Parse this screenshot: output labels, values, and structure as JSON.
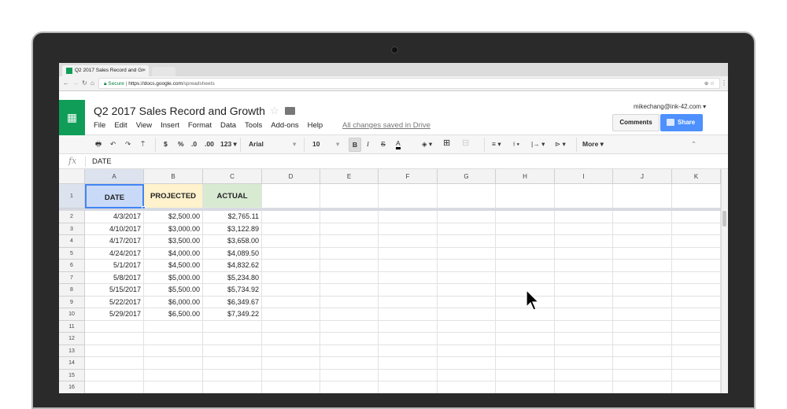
{
  "browser": {
    "tab_title": "Q2 2017 Sales Record and Gr",
    "secure_label": "Secure",
    "url_host": "https://docs.google.com",
    "url_path": "/spreadsheets"
  },
  "doc": {
    "title": "Q2 2017 Sales Record and Growth",
    "menu": [
      "File",
      "Edit",
      "View",
      "Insert",
      "Format",
      "Data",
      "Tools",
      "Add-ons",
      "Help"
    ],
    "save_status": "All changes saved in Drive",
    "user": "mikechang@ink-42.com",
    "comments_label": "Comments",
    "share_label": "Share"
  },
  "toolbar": {
    "currency": "$",
    "percent": "%",
    "dec_less": ".0",
    "dec_more": ".00",
    "format_more": "123",
    "font": "Arial",
    "size": "10",
    "bold": "B",
    "italic": "I",
    "strike": "S",
    "textcolor": "A",
    "more": "More"
  },
  "formula": {
    "label": "fx",
    "value": "DATE"
  },
  "columns": [
    "A",
    "B",
    "C",
    "D",
    "E",
    "F",
    "G",
    "H",
    "I",
    "J",
    "K"
  ],
  "header_row": [
    {
      "text": "DATE",
      "bg": "#c9daf8"
    },
    {
      "text": "PROJECTED",
      "bg": "#fff2cc"
    },
    {
      "text": "ACTUAL",
      "bg": "#d9ead3"
    }
  ],
  "rows": [
    [
      "4/3/2017",
      "$2,500.00",
      "$2,765.11"
    ],
    [
      "4/10/2017",
      "$3,000.00",
      "$3,122.89"
    ],
    [
      "4/17/2017",
      "$3,500.00",
      "$3,658.00"
    ],
    [
      "4/24/2017",
      "$4,000.00",
      "$4,089.50"
    ],
    [
      "5/1/2017",
      "$4,500.00",
      "$4,832.62"
    ],
    [
      "5/8/2017",
      "$5,000.00",
      "$5,234.80"
    ],
    [
      "5/15/2017",
      "$5,500.00",
      "$5,734.92"
    ],
    [
      "5/22/2017",
      "$6,000.00",
      "$6,349.67"
    ],
    [
      "5/29/2017",
      "$6,500.00",
      "$7,349.22"
    ]
  ],
  "row_count": 16,
  "colors": {
    "brand": "#0f9d58",
    "share": "#4d90fe",
    "selection": "#4285f4"
  }
}
